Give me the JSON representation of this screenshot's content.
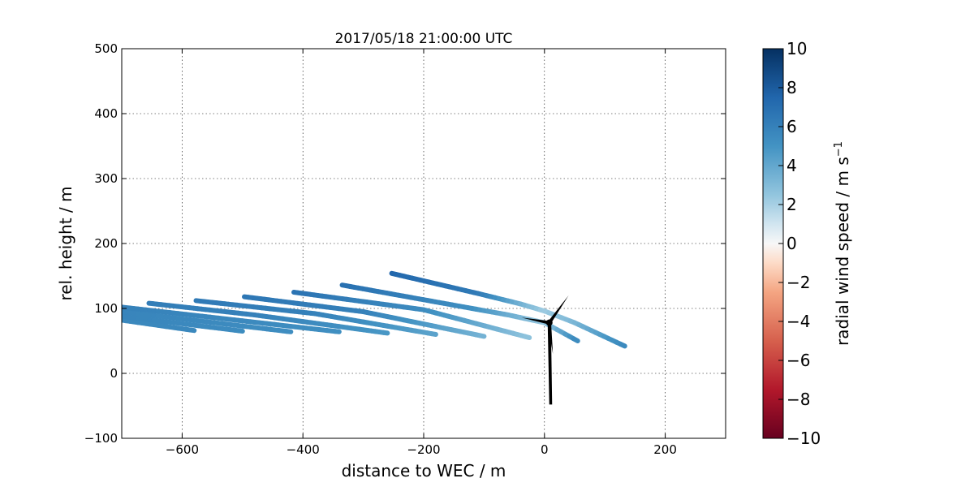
{
  "chart_data": {
    "type": "line",
    "title": "2017/05/18 21:00:00 UTC",
    "xlabel": "distance to WEC / m",
    "ylabel": "rel. height / m",
    "xlim": [
      -700,
      300
    ],
    "ylim": [
      -100,
      500
    ],
    "x_ticks": [
      -600,
      -400,
      -200,
      0,
      200
    ],
    "x_tick_labels": [
      "−600",
      "−400",
      "−200",
      "0",
      "200"
    ],
    "y_ticks": [
      -100,
      0,
      100,
      200,
      300,
      400,
      500
    ],
    "y_tick_labels": [
      "−100",
      "0",
      "100",
      "200",
      "300",
      "400",
      "500"
    ],
    "grid": true,
    "colorbar": {
      "label": "radial wind speed / m s",
      "label_superscript": "−1",
      "range": [
        -10,
        10
      ],
      "ticks": [
        -10,
        -8,
        -6,
        -4,
        -2,
        0,
        2,
        4,
        6,
        8,
        10
      ],
      "tick_labels": [
        "−10",
        "−8",
        "−6",
        "−4",
        "−2",
        "0",
        "2",
        "4",
        "6",
        "8",
        "10"
      ],
      "colormap": "RdBu"
    },
    "series": [
      {
        "points": [
          [
            -700,
            82,
            5.6
          ],
          [
            -580,
            66,
            5.6
          ]
        ]
      },
      {
        "points": [
          [
            -700,
            88,
            5.8
          ],
          [
            -500,
            65,
            5.4
          ]
        ]
      },
      {
        "points": [
          [
            -700,
            95,
            5.8
          ],
          [
            -420,
            64,
            5.3
          ]
        ]
      },
      {
        "points": [
          [
            -700,
            102,
            6.0
          ],
          [
            -340,
            64,
            5.2
          ]
        ]
      },
      {
        "points": [
          [
            -655,
            108,
            6.2
          ],
          [
            -480,
            90,
            6.0
          ],
          [
            -260,
            62,
            4.8
          ]
        ]
      },
      {
        "points": [
          [
            -577,
            112,
            6.4
          ],
          [
            -380,
            92,
            6.0
          ],
          [
            -180,
            60,
            4.2
          ]
        ]
      },
      {
        "points": [
          [
            -497,
            118,
            6.6
          ],
          [
            -300,
            95,
            6.0
          ],
          [
            -100,
            57,
            3.4
          ]
        ]
      },
      {
        "points": [
          [
            -415,
            125,
            6.8
          ],
          [
            -200,
            98,
            5.4
          ],
          [
            -25,
            55,
            2.6
          ]
        ]
      },
      {
        "points": [
          [
            -335,
            136,
            7.0
          ],
          [
            -120,
            100,
            5.2
          ],
          [
            -60,
            90,
            3.8
          ],
          [
            0,
            78,
            2.4
          ],
          [
            55,
            50,
            5.6
          ]
        ]
      },
      {
        "points": [
          [
            -253,
            154,
            7.4
          ],
          [
            -110,
            123,
            6.4
          ],
          [
            -40,
            107,
            3.6
          ],
          [
            0,
            96,
            2.2
          ],
          [
            50,
            78,
            3.2
          ],
          [
            133,
            42,
            5.6
          ]
        ]
      }
    ],
    "turbine": {
      "hub": [
        8,
        78
      ],
      "tower_base": [
        10,
        -48
      ],
      "blades": [
        [
          40,
          120
        ],
        [
          -38,
          86
        ],
        [
          14,
          30
        ]
      ]
    }
  }
}
